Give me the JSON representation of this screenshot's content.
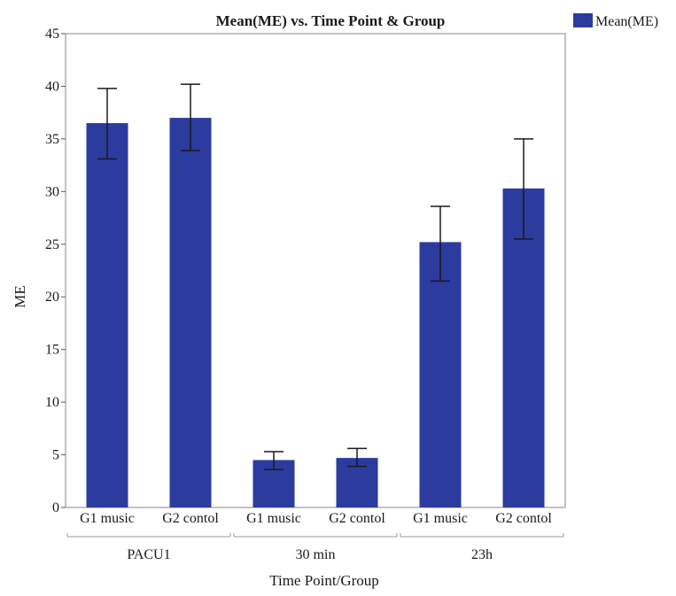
{
  "chart_data": {
    "type": "bar",
    "title": "Mean(ME) vs. Time Point & Group",
    "xlabel": "Time Point/Group",
    "ylabel": "ME",
    "ylim": [
      0,
      45
    ],
    "yticks": [
      0,
      5,
      10,
      15,
      20,
      25,
      30,
      35,
      40,
      45
    ],
    "grid": false,
    "legend_position": "top-right",
    "bar_color": "#2b3b9e",
    "series": [
      {
        "name": "Mean(ME)",
        "values": [
          36.5,
          37.0,
          4.5,
          4.7,
          25.2,
          30.3
        ],
        "error_low": [
          33.1,
          33.9,
          3.6,
          3.9,
          21.5,
          25.5
        ],
        "error_high": [
          39.8,
          40.2,
          5.3,
          5.6,
          28.6,
          35.0
        ]
      }
    ],
    "categories": [
      "G1 music",
      "G2 contol",
      "G1 music",
      "G2 contol",
      "G1 music",
      "G2 contol"
    ],
    "groups": [
      {
        "label": "PACU1",
        "members": [
          0,
          1
        ]
      },
      {
        "label": "30 min",
        "members": [
          2,
          3
        ]
      },
      {
        "label": "23h",
        "members": [
          4,
          5
        ]
      }
    ]
  }
}
